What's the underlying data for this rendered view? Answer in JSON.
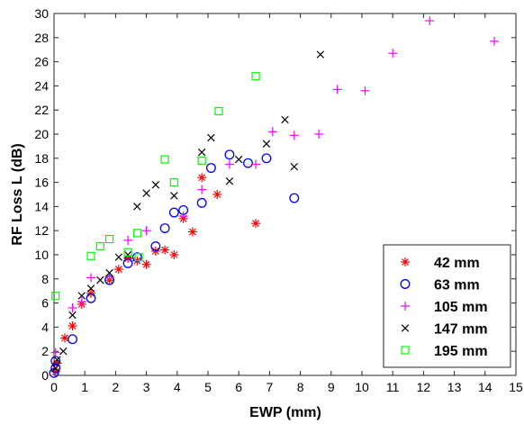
{
  "chart_data": {
    "type": "scatter",
    "title": "",
    "xlabel": "EWP (mm)",
    "ylabel": "RF Loss L (dB)",
    "xlim": [
      0,
      15
    ],
    "ylim": [
      0,
      30
    ],
    "xticks": [
      "0",
      "1",
      "2",
      "3",
      "4",
      "5",
      "6",
      "7",
      "8",
      "9",
      "10",
      "11",
      "12",
      "13",
      "14",
      "15"
    ],
    "yticks": [
      "0",
      "2",
      "4",
      "6",
      "8",
      "10",
      "12",
      "14",
      "16",
      "18",
      "20",
      "22",
      "24",
      "26",
      "28",
      "30"
    ],
    "grid": false,
    "legend_position": "bottom-right",
    "series": [
      {
        "name": "42 mm",
        "marker": "asterisk",
        "color": "#ff0000",
        "points": [
          [
            0.05,
            0.3
          ],
          [
            0.1,
            1.0
          ],
          [
            0.35,
            3.1
          ],
          [
            0.6,
            4.1
          ],
          [
            0.9,
            5.9
          ],
          [
            1.2,
            6.8
          ],
          [
            1.8,
            7.9
          ],
          [
            2.1,
            8.8
          ],
          [
            2.4,
            9.7
          ],
          [
            2.7,
            9.5
          ],
          [
            3.0,
            9.2
          ],
          [
            3.3,
            10.3
          ],
          [
            3.6,
            10.4
          ],
          [
            3.9,
            10.0
          ],
          [
            4.2,
            13.0
          ],
          [
            4.5,
            11.9
          ],
          [
            4.8,
            16.4
          ],
          [
            5.3,
            15.0
          ],
          [
            6.55,
            12.6
          ]
        ]
      },
      {
        "name": "63 mm",
        "marker": "circle",
        "color": "#0000ff",
        "points": [
          [
            0.0,
            0.2
          ],
          [
            0.05,
            0.6
          ],
          [
            0.05,
            1.2
          ],
          [
            0.6,
            3.0
          ],
          [
            1.2,
            6.4
          ],
          [
            1.8,
            7.9
          ],
          [
            2.4,
            9.3
          ],
          [
            2.7,
            9.8
          ],
          [
            3.3,
            10.7
          ],
          [
            3.6,
            12.2
          ],
          [
            3.9,
            13.5
          ],
          [
            4.2,
            13.7
          ],
          [
            4.8,
            14.3
          ],
          [
            5.1,
            17.2
          ],
          [
            5.7,
            18.3
          ],
          [
            6.3,
            17.6
          ],
          [
            6.9,
            18.0
          ],
          [
            7.8,
            14.7
          ]
        ]
      },
      {
        "name": "105 mm",
        "marker": "plus",
        "color": "#ff00ff",
        "points": [
          [
            0.05,
            1.9
          ],
          [
            0.6,
            5.6
          ],
          [
            0.9,
            6.1
          ],
          [
            1.2,
            8.1
          ],
          [
            1.8,
            8.2
          ],
          [
            2.4,
            11.2
          ],
          [
            3.0,
            12.0
          ],
          [
            4.2,
            13.2
          ],
          [
            4.8,
            15.4
          ],
          [
            5.7,
            17.5
          ],
          [
            6.55,
            17.5
          ],
          [
            7.1,
            20.2
          ],
          [
            7.8,
            19.9
          ],
          [
            8.6,
            20.0
          ],
          [
            9.2,
            23.7
          ],
          [
            10.1,
            23.6
          ],
          [
            11.0,
            26.7
          ],
          [
            12.2,
            29.4
          ],
          [
            14.3,
            27.7
          ]
        ]
      },
      {
        "name": "147 mm",
        "marker": "x",
        "color": "#000000",
        "points": [
          [
            0.05,
            0.6
          ],
          [
            0.1,
            1.3
          ],
          [
            0.3,
            2.0
          ],
          [
            0.6,
            5.0
          ],
          [
            0.9,
            6.6
          ],
          [
            1.2,
            7.2
          ],
          [
            1.5,
            7.9
          ],
          [
            1.8,
            8.5
          ],
          [
            2.1,
            9.8
          ],
          [
            2.4,
            10.0
          ],
          [
            2.7,
            14.0
          ],
          [
            3.0,
            15.1
          ],
          [
            3.3,
            15.8
          ],
          [
            3.9,
            14.9
          ],
          [
            4.8,
            18.5
          ],
          [
            5.1,
            19.7
          ],
          [
            5.7,
            16.1
          ],
          [
            6.0,
            17.9
          ],
          [
            6.9,
            19.2
          ],
          [
            7.5,
            21.2
          ],
          [
            7.8,
            17.3
          ],
          [
            8.65,
            26.6
          ]
        ]
      },
      {
        "name": "195 mm",
        "marker": "square",
        "color": "#00ff00",
        "points": [
          [
            0.05,
            6.6
          ],
          [
            1.2,
            9.9
          ],
          [
            1.5,
            10.7
          ],
          [
            1.8,
            11.3
          ],
          [
            2.4,
            10.2
          ],
          [
            2.7,
            11.8
          ],
          [
            2.75,
            9.8
          ],
          [
            3.6,
            17.9
          ],
          [
            3.9,
            16.0
          ],
          [
            4.8,
            17.8
          ],
          [
            5.35,
            21.9
          ],
          [
            6.55,
            24.8
          ]
        ]
      }
    ]
  }
}
